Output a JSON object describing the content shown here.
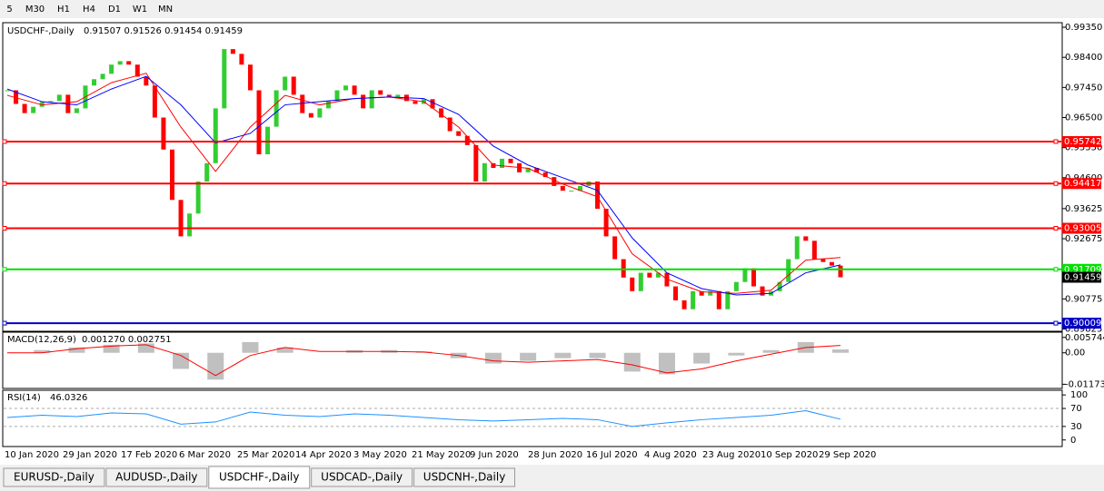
{
  "toolbar": {
    "timeframes": [
      "5",
      "M30",
      "H1",
      "H4",
      "D1",
      "W1",
      "MN"
    ]
  },
  "chart": {
    "title": "USDCHF-,Daily",
    "ohlc": "0.91507 0.91526 0.91454 0.91459",
    "ylim": [
      0.89754,
      0.99494
    ],
    "yticks": [
      {
        "value": 0.9935,
        "label": "0.99350"
      },
      {
        "value": 0.984,
        "label": "0.98400"
      },
      {
        "value": 0.9745,
        "label": "0.97450"
      },
      {
        "value": 0.965,
        "label": "0.96500"
      },
      {
        "value": 0.9555,
        "label": "0.95550"
      },
      {
        "value": 0.946,
        "label": "0.94600"
      },
      0.93625,
      0.92675,
      {
        "value": 0.91725,
        "label": "0.91725"
      },
      0.90775,
      0.89825
    ],
    "closes": [
      0.9736,
      0.9693,
      0.9664,
      0.9684,
      0.9699,
      0.9702,
      0.9722,
      0.9664,
      0.9679,
      0.9751,
      0.9771,
      0.9788,
      0.9817,
      0.9828,
      0.9817,
      0.9779,
      0.9751,
      0.965,
      0.9549,
      0.939,
      0.9275,
      0.9347,
      0.9448,
      0.9506,
      0.9679,
      0.9866,
      0.9851,
      0.9817,
      0.9736,
      0.9534,
      0.9621,
      0.9736,
      0.9779,
      0.9722,
      0.9664,
      0.965,
      0.9679,
      0.9702,
      0.9736,
      0.9751,
      0.9722,
      0.9679,
      0.9736,
      0.9722,
      0.9713,
      0.9722,
      0.9702,
      0.9693,
      0.9708,
      0.9679,
      0.965,
      0.9607,
      0.9592,
      0.9563,
      0.9448,
      0.9506,
      0.9491,
      0.952,
      0.9506,
      0.9477,
      0.9491,
      0.9477,
      0.9462,
      0.9434,
      0.9419,
      0.9419,
      0.9434,
      0.9448,
      0.9362,
      0.9275,
      0.9203,
      0.9145,
      0.9102,
      0.916,
      0.9145,
      0.916,
      0.9117,
      0.9073,
      0.9045,
      0.9102,
      0.9088,
      0.9102,
      0.9045,
      0.9102,
      0.9131,
      0.9174,
      0.9117,
      0.9088,
      0.9102,
      0.9131,
      0.9203,
      0.9275,
      0.9261,
      0.9203,
      0.9194,
      0.91826,
      0.91459
    ],
    "up_color": "#32cd32",
    "down_color": "#ff0000",
    "ma": [
      {
        "color": "#ff0000",
        "values": [
          0.972,
          0.969,
          0.97,
          0.976,
          0.979,
          0.962,
          0.948,
          0.962,
          0.972,
          0.969,
          0.971,
          0.9715,
          0.97,
          0.962,
          0.95,
          0.949,
          0.944,
          0.94,
          0.922,
          0.914,
          0.91,
          0.9095,
          0.9105,
          0.92,
          0.9208
        ]
      },
      {
        "color": "#0000ff",
        "values": [
          0.974,
          0.97,
          0.969,
          0.974,
          0.978,
          0.969,
          0.957,
          0.96,
          0.969,
          0.97,
          0.971,
          0.9715,
          0.971,
          0.966,
          0.956,
          0.95,
          0.946,
          0.942,
          0.927,
          0.916,
          0.911,
          0.909,
          0.9095,
          0.916,
          0.9185
        ]
      }
    ],
    "levels": [
      {
        "price": 0.95742,
        "color": "#ff0000"
      },
      {
        "price": 0.94417,
        "color": "#ff0000"
      },
      {
        "price": 0.93005,
        "color": "#ff0000"
      },
      {
        "price": 0.91709,
        "color": "#00e000"
      },
      {
        "price": 0.90009,
        "color": "#0000c8"
      }
    ],
    "last_price": 0.91459,
    "dates": [
      "10 Jan 2020",
      "29 Jan 2020",
      "17 Feb 2020",
      "6 Mar 2020",
      "25 Mar 2020",
      "14 Apr 2020",
      "3 May 2020",
      "21 May 2020",
      "9 Jun 2020",
      "28 Jun 2020",
      "16 Jul 2020",
      "4 Aug 2020",
      "23 Aug 2020",
      "10 Sep 2020",
      "29 Sep 2020"
    ]
  },
  "macd": {
    "label": "MACD(12,26,9)",
    "readout": "0.001270 0.002751",
    "ylim": [
      -0.0133,
      0.0077
    ],
    "yticks": [
      0.005744,
      {
        "value": 0,
        "label": "0.00"
      },
      -0.011738
    ],
    "histogram": [
      0,
      0.001,
      0.002,
      0.003,
      0.0035,
      -0.006,
      -0.01,
      0.004,
      0.002,
      0,
      0.001,
      0.001,
      0.0005,
      -0.002,
      -0.004,
      -0.003,
      -0.002,
      -0.002,
      -0.007,
      -0.008,
      -0.004,
      -0.001,
      0.001,
      0.004,
      0.00127
    ],
    "signal": [
      0,
      0,
      0.0015,
      0.0025,
      0.003,
      -0.001,
      -0.0085,
      -0.001,
      0.002,
      0.0005,
      0.0005,
      0.0005,
      0.0003,
      -0.001,
      -0.003,
      -0.0035,
      -0.003,
      -0.0025,
      -0.0045,
      -0.0075,
      -0.006,
      -0.003,
      -0.0005,
      0.002,
      0.00275
    ],
    "hist_color": "#c0c0c0",
    "signal_color": "#ff0000"
  },
  "rsi": {
    "label": "RSI(14)",
    "readout": 46.0326,
    "ylim": [
      -14.6,
      110.4
    ],
    "yticks": [
      100,
      70,
      30,
      0
    ],
    "levels": [
      70,
      30
    ],
    "values": [
      50,
      55,
      52,
      60,
      58,
      35,
      40,
      62,
      55,
      52,
      58,
      55,
      50,
      45,
      42,
      45,
      48,
      45,
      30,
      38,
      45,
      50,
      55,
      65,
      46.0326
    ],
    "color": "#1e90ff"
  },
  "tabs": {
    "items": [
      "EURUSD-,Daily",
      "AUDUSD-,Daily",
      "USDCHF-,Daily",
      "USDCAD-,Daily",
      "USDCNH-,Daily"
    ],
    "active": 2
  }
}
